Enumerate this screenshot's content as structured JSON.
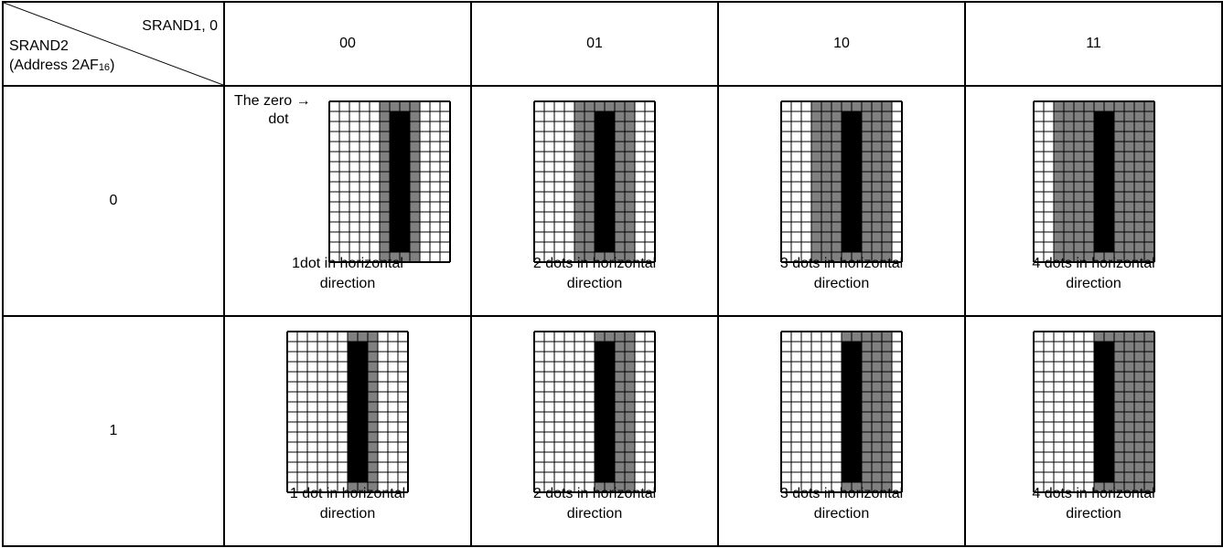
{
  "corner": {
    "top_label": "SRAND1, 0",
    "bottom_label_line1": "SRAND2",
    "bottom_label_line2_prefix": "(Address 2AF",
    "bottom_label_subscript": "16",
    "bottom_label_line2_suffix": ")"
  },
  "columns": [
    "00",
    "01",
    "10",
    "11"
  ],
  "rows": [
    {
      "label": "0",
      "cells": [
        {
          "caption_line1": "1dot in horizontal",
          "caption_line2": "direction",
          "width_dots": 1,
          "sides": "both"
        },
        {
          "caption_line1": "2 dots in horizontal",
          "caption_line2": "direction",
          "width_dots": 2,
          "sides": "both"
        },
        {
          "caption_line1": "3 dots in horizontal",
          "caption_line2": "direction",
          "width_dots": 3,
          "sides": "both"
        },
        {
          "caption_line1": "4 dots in horizontal",
          "caption_line2": "direction",
          "width_dots": 4,
          "sides": "both"
        }
      ]
    },
    {
      "label": "1",
      "cells": [
        {
          "caption_line1": "1 dot in horizontal",
          "caption_line2": "direction",
          "width_dots": 1,
          "sides": "right"
        },
        {
          "caption_line1": "2 dots in horizontal",
          "caption_line2": "direction",
          "width_dots": 2,
          "sides": "right"
        },
        {
          "caption_line1": "3 dots in horizontal",
          "caption_line2": "direction",
          "width_dots": 3,
          "sides": "right"
        },
        {
          "caption_line1": "4 dots in horizontal",
          "caption_line2": "direction",
          "width_dots": 4,
          "sides": "right"
        }
      ]
    }
  ],
  "annotation": {
    "line1": "The zero",
    "arrow": "→",
    "line2": "dot"
  },
  "colors": {
    "char": "#000000",
    "shadow": "#808080",
    "grid_line": "#000000",
    "background": "#ffffff"
  }
}
